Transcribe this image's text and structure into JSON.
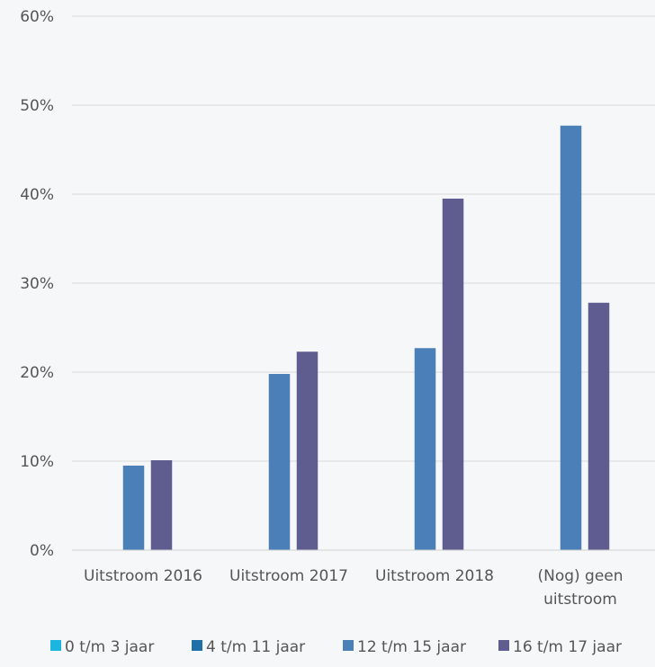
{
  "chart_data": {
    "type": "bar",
    "title": "",
    "xlabel": "",
    "ylabel": "",
    "ylim": [
      0,
      60
    ],
    "y_tick_values": [
      0,
      10,
      20,
      30,
      40,
      50,
      60
    ],
    "y_tick_labels": [
      "0%",
      "10%",
      "20%",
      "30%",
      "40%",
      "50%",
      "60%"
    ],
    "categories": [
      [
        "Uitstroom 2016"
      ],
      [
        "Uitstroom 2017"
      ],
      [
        "Uitstroom 2018"
      ],
      [
        "(Nog) geen",
        "uitstroom"
      ]
    ],
    "series": [
      {
        "name": "0 t/m 3 jaar",
        "color": "#1bb5e0",
        "values": [
          0,
          0,
          0,
          0
        ]
      },
      {
        "name": "4 t/m 11 jaar",
        "color": "#1f6fa8",
        "values": [
          0,
          0,
          0,
          0
        ]
      },
      {
        "name": "12 t/m 15 jaar",
        "color": "#4b7fb8",
        "values": [
          9.5,
          19.8,
          22.7,
          47.7
        ]
      },
      {
        "name": "16 t/m 17 jaar",
        "color": "#5f5c90",
        "values": [
          10.1,
          22.3,
          39.5,
          27.8
        ]
      }
    ],
    "grid": true,
    "legend_position": "bottom"
  }
}
